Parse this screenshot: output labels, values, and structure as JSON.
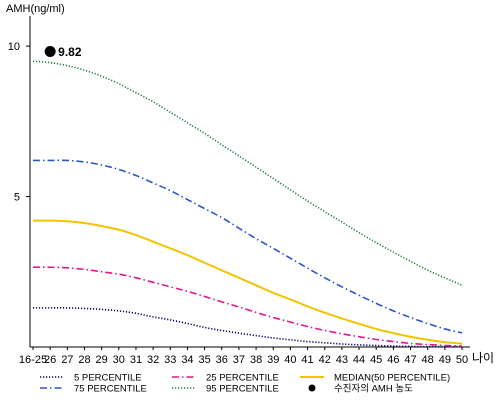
{
  "chart_data": {
    "type": "line",
    "ylabel": "AMH(ng/ml)",
    "xlabel": "나이",
    "ylim": [
      0,
      11
    ],
    "yticks": [
      5,
      10
    ],
    "grid": false,
    "legend_position": "bottom",
    "x": [
      "16-25",
      "26",
      "27",
      "28",
      "29",
      "30",
      "31",
      "32",
      "33",
      "34",
      "35",
      "36",
      "37",
      "38",
      "39",
      "40",
      "41",
      "42",
      "43",
      "44",
      "45",
      "46",
      "47",
      "48",
      "49",
      "50"
    ],
    "series": [
      {
        "name": "5 PERCENTILE",
        "color": "#000066",
        "style": "dotted",
        "values": [
          1.3,
          1.3,
          1.3,
          1.28,
          1.25,
          1.2,
          1.12,
          1.0,
          0.9,
          0.78,
          0.65,
          0.55,
          0.46,
          0.38,
          0.3,
          0.24,
          0.18,
          0.14,
          0.1,
          0.07,
          0.05,
          0.03,
          0.02,
          0.01,
          0.01,
          0.01
        ]
      },
      {
        "name": "25 PERCENTILE",
        "color": "#e0168c",
        "style": "dashdot",
        "values": [
          2.65,
          2.65,
          2.63,
          2.58,
          2.5,
          2.42,
          2.3,
          2.15,
          2.0,
          1.85,
          1.68,
          1.5,
          1.33,
          1.15,
          0.98,
          0.83,
          0.68,
          0.55,
          0.44,
          0.34,
          0.25,
          0.18,
          0.12,
          0.08,
          0.05,
          0.03
        ]
      },
      {
        "name": "MEDIAN(50 PERCENTILE)",
        "color": "#f2c400",
        "style": "solid",
        "values": [
          4.2,
          4.2,
          4.18,
          4.12,
          4.02,
          3.9,
          3.72,
          3.5,
          3.28,
          3.05,
          2.8,
          2.55,
          2.3,
          2.05,
          1.8,
          1.58,
          1.35,
          1.14,
          0.95,
          0.77,
          0.6,
          0.46,
          0.34,
          0.24,
          0.16,
          0.11
        ]
      },
      {
        "name": "75 PERCENTILE",
        "color": "#2a55c9",
        "style": "dashdot",
        "values": [
          6.2,
          6.2,
          6.2,
          6.15,
          6.05,
          5.9,
          5.7,
          5.45,
          5.2,
          4.9,
          4.6,
          4.3,
          3.95,
          3.6,
          3.28,
          2.95,
          2.62,
          2.3,
          2.0,
          1.72,
          1.45,
          1.2,
          0.98,
          0.78,
          0.6,
          0.47
        ]
      },
      {
        "name": "95 PERCENTILE",
        "color": "#1e7b3e",
        "style": "dotted",
        "values": [
          9.5,
          9.45,
          9.35,
          9.2,
          9.0,
          8.75,
          8.45,
          8.15,
          7.8,
          7.45,
          7.1,
          6.72,
          6.35,
          5.98,
          5.6,
          5.22,
          4.85,
          4.5,
          4.15,
          3.8,
          3.47,
          3.15,
          2.85,
          2.55,
          2.3,
          2.05
        ]
      }
    ],
    "marker": {
      "name": "수진자의 AMH 농도",
      "x": "26",
      "y": 9.82,
      "label": "9.82",
      "color": "#000000"
    }
  }
}
